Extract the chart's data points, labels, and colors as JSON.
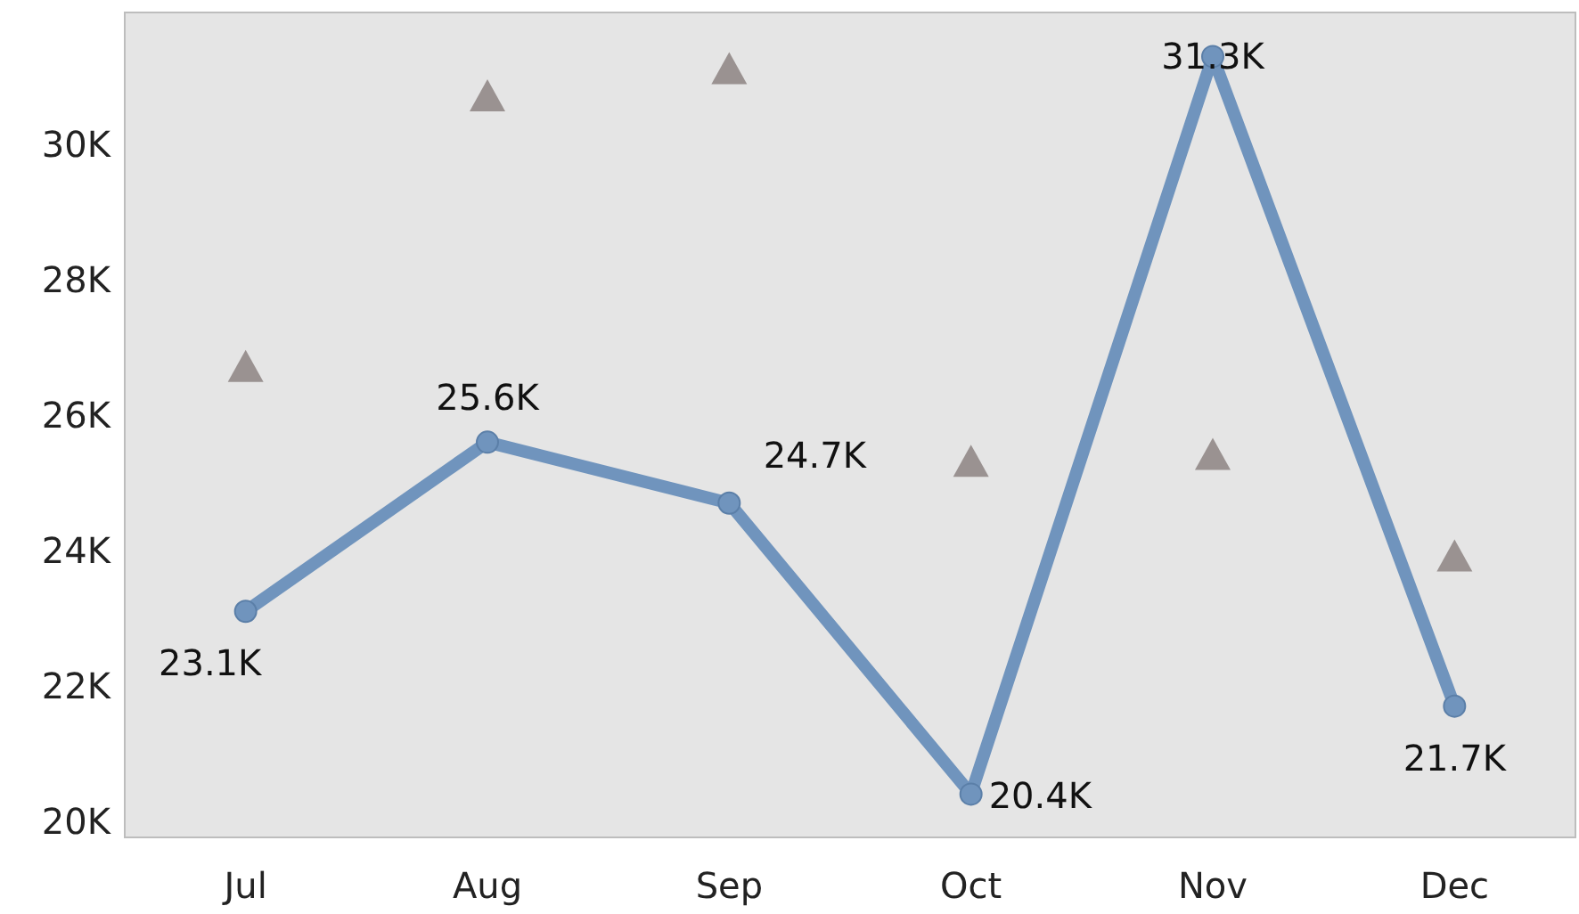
{
  "chart_data": {
    "type": "line",
    "categories": [
      "Jul",
      "Aug",
      "Sep",
      "Oct",
      "Nov",
      "Dec"
    ],
    "series": [
      {
        "color": "#7094bd",
        "marker": "circle",
        "values": [
          23100,
          25600,
          24700,
          20400,
          31300,
          21700
        ],
        "value_labels": [
          "23.1K",
          "25.6K",
          "24.7K",
          "20.4K",
          "31.3K",
          "21.7K"
        ]
      },
      {
        "type": "scatter",
        "color": "#9a9291",
        "marker": "triangle",
        "values": [
          26700,
          30700,
          31100,
          25300,
          25400,
          23900
        ]
      }
    ],
    "ylim": [
      19760,
      31950
    ],
    "yticks": [
      {
        "value": 20000,
        "label": "20K"
      },
      {
        "value": 22000,
        "label": "22K"
      },
      {
        "value": 24000,
        "label": "24K"
      },
      {
        "value": 26000,
        "label": "26K"
      },
      {
        "value": 28000,
        "label": "28K"
      },
      {
        "value": 30000,
        "label": "30K"
      }
    ],
    "grid": false
  }
}
